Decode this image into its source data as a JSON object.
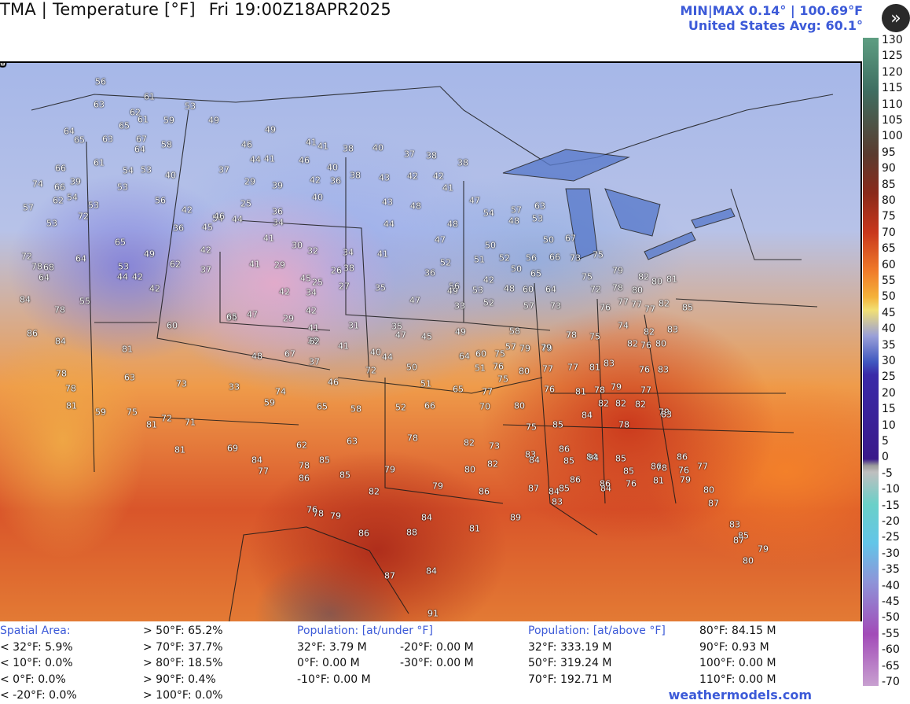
{
  "header": {
    "title_left": "TMA | Temperature [°F]",
    "title_time": "Fri 19:00Z18APR2025",
    "minmax": "MIN|MAX 0.14° | 100.69°F",
    "avg": "United States Avg: 60.1°"
  },
  "expand_icon": "chevron-double-right-icon",
  "colorbar_ticks": [
    "130",
    "125",
    "120",
    "115",
    "110",
    "105",
    "100",
    "95",
    "90",
    "85",
    "80",
    "75",
    "70",
    "65",
    "60",
    "55",
    "50",
    "45",
    "40",
    "35",
    "30",
    "25",
    "20",
    "15",
    "10",
    "5",
    "0",
    "-5",
    "-10",
    "-15",
    "-20",
    "-25",
    "-30",
    "-35",
    "-40",
    "-45",
    "-50",
    "-55",
    "-60",
    "-65",
    "-70"
  ],
  "station_values": [
    {
      "v": "56"
    },
    {
      "v": "63"
    },
    {
      "v": "61"
    },
    {
      "v": "62"
    },
    {
      "v": "61"
    },
    {
      "v": "59"
    },
    {
      "v": "53"
    },
    {
      "v": "64"
    },
    {
      "v": "65"
    },
    {
      "v": "67"
    },
    {
      "v": "65"
    },
    {
      "v": "63"
    },
    {
      "v": "64"
    },
    {
      "v": "58"
    },
    {
      "v": "49"
    },
    {
      "v": "49"
    },
    {
      "v": "66"
    },
    {
      "v": "61"
    },
    {
      "v": "54"
    },
    {
      "v": "53"
    },
    {
      "v": "40"
    },
    {
      "v": "46"
    },
    {
      "v": "44"
    },
    {
      "v": "41"
    },
    {
      "v": "46"
    },
    {
      "v": "41"
    },
    {
      "v": "41"
    },
    {
      "v": "38"
    },
    {
      "v": "40"
    },
    {
      "v": "37"
    },
    {
      "v": "38"
    },
    {
      "v": "38"
    },
    {
      "v": "74"
    },
    {
      "v": "66"
    },
    {
      "v": "39"
    },
    {
      "v": "53"
    },
    {
      "v": "37"
    },
    {
      "v": "29"
    },
    {
      "v": "39"
    },
    {
      "v": "42"
    },
    {
      "v": "40"
    },
    {
      "v": "36"
    },
    {
      "v": "38"
    },
    {
      "v": "43"
    },
    {
      "v": "42"
    },
    {
      "v": "42"
    },
    {
      "v": "41"
    },
    {
      "v": "62"
    },
    {
      "v": "54"
    },
    {
      "v": "53"
    },
    {
      "v": "56"
    },
    {
      "v": "42"
    },
    {
      "v": "25"
    },
    {
      "v": "36"
    },
    {
      "v": "40"
    },
    {
      "v": "43"
    },
    {
      "v": "48"
    },
    {
      "v": "47"
    },
    {
      "v": "54"
    },
    {
      "v": "57"
    },
    {
      "v": "48"
    },
    {
      "v": "57"
    },
    {
      "v": "53"
    },
    {
      "v": "72"
    },
    {
      "v": "54"
    },
    {
      "v": "44"
    },
    {
      "v": "34"
    },
    {
      "v": "36"
    },
    {
      "v": "45"
    },
    {
      "v": "46"
    },
    {
      "v": "44"
    },
    {
      "v": "48"
    },
    {
      "v": "52"
    },
    {
      "v": "56"
    },
    {
      "v": "53"
    },
    {
      "v": "63"
    },
    {
      "v": "65"
    },
    {
      "v": "49"
    },
    {
      "v": "41"
    },
    {
      "v": "30"
    },
    {
      "v": "32"
    },
    {
      "v": "34"
    },
    {
      "v": "41"
    },
    {
      "v": "47"
    },
    {
      "v": "50"
    },
    {
      "v": "50"
    },
    {
      "v": "67"
    },
    {
      "v": "72"
    },
    {
      "v": "64"
    },
    {
      "v": "53"
    },
    {
      "v": "42"
    },
    {
      "v": "42"
    },
    {
      "v": "41"
    },
    {
      "v": "29"
    },
    {
      "v": "26"
    },
    {
      "v": "38"
    },
    {
      "v": "36"
    },
    {
      "v": "51"
    },
    {
      "v": "52"
    },
    {
      "v": "56"
    },
    {
      "v": "66"
    },
    {
      "v": "73"
    },
    {
      "v": "75"
    },
    {
      "v": "78"
    },
    {
      "v": "68"
    },
    {
      "v": "64"
    },
    {
      "v": "62"
    },
    {
      "v": "42"
    },
    {
      "v": "37"
    },
    {
      "v": "45"
    },
    {
      "v": "25"
    },
    {
      "v": "27"
    },
    {
      "v": "35"
    },
    {
      "v": "42"
    },
    {
      "v": "50"
    },
    {
      "v": "65"
    },
    {
      "v": "75"
    },
    {
      "v": "79"
    },
    {
      "v": "82"
    },
    {
      "v": "80"
    },
    {
      "v": "81"
    },
    {
      "v": "84"
    },
    {
      "v": "55"
    },
    {
      "v": "44"
    },
    {
      "v": "42"
    },
    {
      "v": "34"
    },
    {
      "v": "34"
    },
    {
      "v": "47"
    },
    {
      "v": "49"
    },
    {
      "v": "53"
    },
    {
      "v": "48"
    },
    {
      "v": "60"
    },
    {
      "v": "64"
    },
    {
      "v": "72"
    },
    {
      "v": "78"
    },
    {
      "v": "80"
    },
    {
      "v": "78"
    },
    {
      "v": "65"
    },
    {
      "v": "47"
    },
    {
      "v": "42"
    },
    {
      "v": "33"
    },
    {
      "v": "52"
    },
    {
      "v": "57"
    },
    {
      "v": "73"
    },
    {
      "v": "76"
    },
    {
      "v": "77"
    },
    {
      "v": "77"
    },
    {
      "v": "77"
    },
    {
      "v": "82"
    },
    {
      "v": "85"
    },
    {
      "v": "86"
    },
    {
      "v": "60"
    },
    {
      "v": "29"
    },
    {
      "v": "31"
    },
    {
      "v": "38"
    },
    {
      "v": "41"
    },
    {
      "v": "35"
    },
    {
      "v": "47"
    },
    {
      "v": "49"
    },
    {
      "v": "58"
    },
    {
      "v": "74"
    },
    {
      "v": "82"
    },
    {
      "v": "83"
    },
    {
      "v": "84"
    },
    {
      "v": "62"
    },
    {
      "v": "41"
    },
    {
      "v": "45"
    },
    {
      "v": "57"
    },
    {
      "v": "79"
    },
    {
      "v": "79"
    },
    {
      "v": "78"
    },
    {
      "v": "75"
    },
    {
      "v": "76"
    },
    {
      "v": "82"
    },
    {
      "v": "80"
    },
    {
      "v": "81"
    },
    {
      "v": "67"
    },
    {
      "v": "48"
    },
    {
      "v": "37"
    },
    {
      "v": "40"
    },
    {
      "v": "44"
    },
    {
      "v": "50"
    },
    {
      "v": "64"
    },
    {
      "v": "60"
    },
    {
      "v": "75"
    },
    {
      "v": "79"
    },
    {
      "v": "78"
    },
    {
      "v": "63"
    },
    {
      "v": "72"
    },
    {
      "v": "51"
    },
    {
      "v": "76"
    },
    {
      "v": "75"
    },
    {
      "v": "80"
    },
    {
      "v": "77"
    },
    {
      "v": "77"
    },
    {
      "v": "81"
    },
    {
      "v": "83"
    },
    {
      "v": "76"
    },
    {
      "v": "83"
    },
    {
      "v": "78"
    },
    {
      "v": "73"
    },
    {
      "v": "33"
    },
    {
      "v": "46"
    },
    {
      "v": "51"
    },
    {
      "v": "65"
    },
    {
      "v": "77"
    },
    {
      "v": "76"
    },
    {
      "v": "81"
    },
    {
      "v": "78"
    },
    {
      "v": "79"
    },
    {
      "v": "77"
    },
    {
      "v": "81"
    },
    {
      "v": "59"
    },
    {
      "v": "75"
    },
    {
      "v": "74"
    },
    {
      "v": "59"
    },
    {
      "v": "65"
    },
    {
      "v": "58"
    },
    {
      "v": "52"
    },
    {
      "v": "66"
    },
    {
      "v": "70"
    },
    {
      "v": "80"
    },
    {
      "v": "82"
    },
    {
      "v": "82"
    },
    {
      "v": "82"
    },
    {
      "v": "79"
    },
    {
      "v": "81"
    },
    {
      "v": "72"
    },
    {
      "v": "71"
    },
    {
      "v": "62"
    },
    {
      "v": "78"
    },
    {
      "v": "75"
    },
    {
      "v": "85"
    },
    {
      "v": "84"
    },
    {
      "v": "78"
    },
    {
      "v": "83"
    },
    {
      "v": "81"
    },
    {
      "v": "69"
    },
    {
      "v": "63"
    },
    {
      "v": "82"
    },
    {
      "v": "73"
    },
    {
      "v": "83"
    },
    {
      "v": "86"
    },
    {
      "v": "84"
    },
    {
      "v": "84"
    },
    {
      "v": "77"
    },
    {
      "v": "78"
    },
    {
      "v": "85"
    },
    {
      "v": "80"
    },
    {
      "v": "82"
    },
    {
      "v": "84"
    },
    {
      "v": "85"
    },
    {
      "v": "84"
    },
    {
      "v": "85"
    },
    {
      "v": "86"
    },
    {
      "v": "86"
    },
    {
      "v": "86"
    },
    {
      "v": "85"
    },
    {
      "v": "79"
    },
    {
      "v": "79"
    },
    {
      "v": "86"
    },
    {
      "v": "87"
    },
    {
      "v": "85"
    },
    {
      "v": "84"
    },
    {
      "v": "85"
    },
    {
      "v": "78"
    },
    {
      "v": "76"
    },
    {
      "v": "77"
    },
    {
      "v": "82"
    },
    {
      "v": "78"
    },
    {
      "v": "86"
    },
    {
      "v": "76"
    },
    {
      "v": "79"
    },
    {
      "v": "84"
    },
    {
      "v": "89"
    },
    {
      "v": "81"
    },
    {
      "v": "84"
    },
    {
      "v": "86"
    },
    {
      "v": "88"
    },
    {
      "v": "87"
    },
    {
      "v": "84"
    },
    {
      "v": "91"
    },
    {
      "v": "83"
    },
    {
      "v": "86"
    },
    {
      "v": "76"
    },
    {
      "v": "81"
    },
    {
      "v": "79"
    },
    {
      "v": "80"
    },
    {
      "v": "87"
    },
    {
      "v": "83"
    },
    {
      "v": "85"
    },
    {
      "v": "79"
    },
    {
      "v": "87"
    },
    {
      "v": "80"
    },
    {
      "v": "81"
    },
    {
      "v": "57"
    },
    {
      "v": "58"
    },
    {
      "v": "59"
    },
    {
      "v": "60"
    },
    {
      "v": "50"
    },
    {
      "v": "58"
    },
    {
      "v": "66"
    },
    {
      "v": "59"
    },
    {
      "v": "61"
    },
    {
      "v": "63"
    },
    {
      "v": "64"
    },
    {
      "v": "65"
    },
    {
      "v": "68"
    },
    {
      "v": "67"
    },
    {
      "v": "69"
    },
    {
      "v": "68"
    },
    {
      "v": "67"
    },
    {
      "v": "65"
    },
    {
      "v": "54"
    },
    {
      "v": "67"
    },
    {
      "v": "68"
    },
    {
      "v": "64"
    },
    {
      "v": "69"
    },
    {
      "v": "70"
    },
    {
      "v": "62"
    },
    {
      "v": "72"
    },
    {
      "v": "66"
    },
    {
      "v": "73"
    },
    {
      "v": "62"
    },
    {
      "v": "71"
    },
    {
      "v": "74"
    },
    {
      "v": "75"
    },
    {
      "v": "73"
    },
    {
      "v": "74"
    },
    {
      "v": "74"
    },
    {
      "v": "71"
    },
    {
      "v": "77"
    },
    {
      "v": "78"
    },
    {
      "v": "75"
    },
    {
      "v": "80"
    },
    {
      "v": "79"
    },
    {
      "v": "81"
    },
    {
      "v": "79"
    },
    {
      "v": "77"
    },
    {
      "v": "79"
    },
    {
      "v": "80"
    },
    {
      "v": "79"
    },
    {
      "v": "72"
    },
    {
      "v": "78"
    },
    {
      "v": "76"
    },
    {
      "v": "80"
    },
    {
      "v": "79"
    },
    {
      "v": "75"
    },
    {
      "v": "81"
    },
    {
      "v": "80"
    },
    {
      "v": "81"
    },
    {
      "v": "83"
    },
    {
      "v": "76"
    },
    {
      "v": "80"
    },
    {
      "v": "82"
    },
    {
      "v": "81"
    },
    {
      "v": "84"
    },
    {
      "v": "76"
    }
  ],
  "footer": {
    "spatial_header": "Spatial Area:",
    "spatial_lines": [
      "< 32°F: 5.9%",
      "< 10°F: 0.0%",
      "< 0°F: 0.0%",
      "< -20°F: 0.0%"
    ],
    "spatial_lines2": [
      "> 50°F: 65.2%",
      "> 70°F: 37.7%",
      "> 80°F: 18.5%",
      "> 90°F: 0.4%",
      "> 100°F: 0.0%"
    ],
    "pop_under_header": "Population: [at/under °F]",
    "pop_under_col1": [
      "32°F: 3.79 M",
      "0°F: 0.00 M",
      "-10°F: 0.00 M"
    ],
    "pop_under_col2": [
      "-20°F: 0.00 M",
      "-30°F: 0.00 M"
    ],
    "pop_above_header": "Population: [at/above °F]",
    "pop_above_col1": [
      "32°F: 333.19 M",
      "50°F: 319.24 M",
      "70°F: 192.71 M"
    ],
    "pop_above_col2": [
      "80°F: 84.15 M",
      "90°F: 0.93 M",
      "100°F: 0.00 M",
      "110°F: 0.00 M"
    ],
    "credit": "weathermodels.com"
  }
}
